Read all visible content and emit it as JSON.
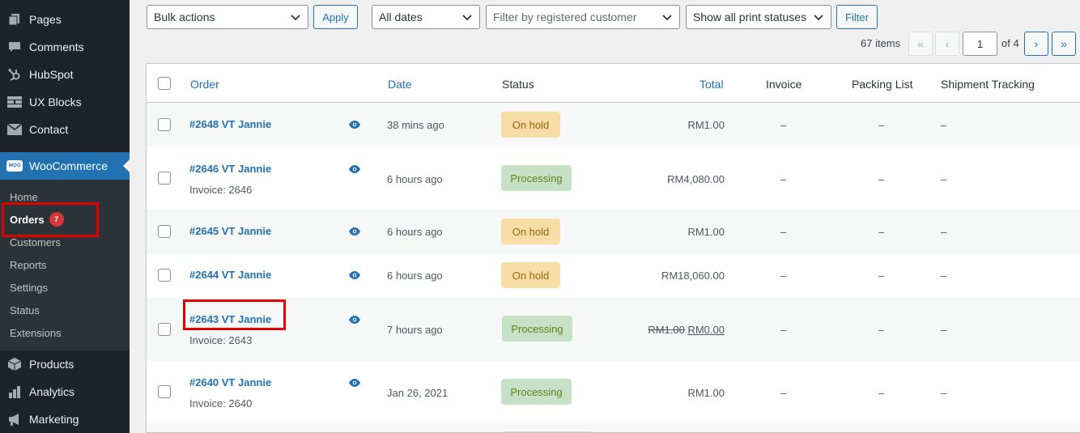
{
  "sidebar": {
    "top_items": [
      {
        "label": "Pages",
        "icon": "pages-icon"
      },
      {
        "label": "Comments",
        "icon": "comments-icon"
      },
      {
        "label": "HubSpot",
        "icon": "hubspot-icon"
      },
      {
        "label": "UX Blocks",
        "icon": "ux-blocks-icon"
      },
      {
        "label": "Contact",
        "icon": "contact-icon"
      }
    ],
    "woocommerce": {
      "label": "WooCommerce",
      "icon_text": "WOO"
    },
    "submenu": [
      {
        "label": "Home"
      },
      {
        "label": "Orders",
        "badge": "7"
      },
      {
        "label": "Customers"
      },
      {
        "label": "Reports"
      },
      {
        "label": "Settings"
      },
      {
        "label": "Status"
      },
      {
        "label": "Extensions"
      }
    ],
    "bottom_items": [
      {
        "label": "Products",
        "icon": "products-icon"
      },
      {
        "label": "Analytics",
        "icon": "analytics-icon"
      },
      {
        "label": "Marketing",
        "icon": "marketing-icon"
      }
    ]
  },
  "toolbar": {
    "bulk_actions": "Bulk actions",
    "apply": "Apply",
    "dates": "All dates",
    "customer_placeholder": "Filter by registered customer",
    "print_status": "Show all print statuses",
    "filter": "Filter"
  },
  "pagination": {
    "items": "67 items",
    "first": "«",
    "prev": "‹",
    "current_page": "1",
    "of": "of 4",
    "next": "›",
    "last": "»"
  },
  "table": {
    "headers": {
      "order": "Order",
      "date": "Date",
      "status": "Status",
      "total": "Total",
      "invoice": "Invoice",
      "packing": "Packing List",
      "tracking": "Shipment Tracking"
    },
    "rows": [
      {
        "order": "#2648 VT Jannie",
        "invoice": "",
        "date": "38 mins ago",
        "status": "On hold",
        "total": "RM1.00",
        "old_total": "",
        "inv": "–",
        "pack": "–",
        "track": "–"
      },
      {
        "order": "#2646 VT Jannie",
        "invoice": "Invoice: 2646",
        "date": "6 hours ago",
        "status": "Processing",
        "total": "RM4,080.00",
        "old_total": "",
        "inv": "–",
        "pack": "–",
        "track": "–"
      },
      {
        "order": "#2645 VT Jannie",
        "invoice": "",
        "date": "6 hours ago",
        "status": "On hold",
        "total": "RM1.00",
        "old_total": "",
        "inv": "–",
        "pack": "–",
        "track": "–"
      },
      {
        "order": "#2644 VT Jannie",
        "invoice": "",
        "date": "6 hours ago",
        "status": "On hold",
        "total": "RM18,060.00",
        "old_total": "",
        "inv": "–",
        "pack": "–",
        "track": "–"
      },
      {
        "order": "#2643 VT Jannie",
        "invoice": "Invoice: 2643",
        "date": "7 hours ago",
        "status": "Processing",
        "total": "RM0.00",
        "old_total": "RM1.00",
        "inv": "–",
        "pack": "–",
        "track": "–"
      },
      {
        "order": "#2640 VT Jannie",
        "invoice": "Invoice: 2640",
        "date": "Jan 26, 2021",
        "status": "Processing",
        "total": "RM1.00",
        "old_total": "",
        "inv": "–",
        "pack": "–",
        "track": "–"
      }
    ]
  },
  "colors": {
    "sidebar_bg": "#1d2327",
    "submenu_bg": "#2c3338",
    "accent": "#2271b1",
    "on_hold_bg": "#f8dda7",
    "processing_bg": "#c6e1c6",
    "highlight": "#e00000"
  }
}
